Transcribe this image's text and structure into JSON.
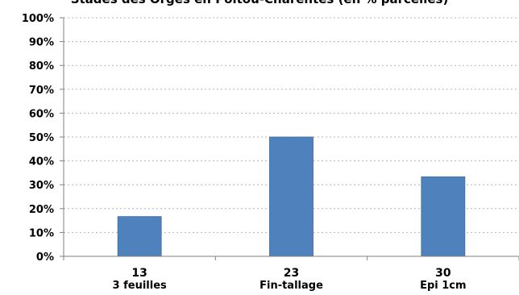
{
  "chart_data": {
    "type": "bar",
    "title": "Stades des Orges en Poitou-Charentes (en % parcelles)",
    "categories": [
      {
        "code": "13",
        "name": "3 feuilles"
      },
      {
        "code": "23",
        "name": "Fin-tallage"
      },
      {
        "code": "30",
        "name": "Epi 1cm"
      }
    ],
    "values": [
      16.67,
      50,
      33.33
    ],
    "ylim": [
      0,
      100
    ],
    "yticks": [
      "0%",
      "10%",
      "20%",
      "30%",
      "40%",
      "50%",
      "60%",
      "70%",
      "80%",
      "90%",
      "100%"
    ],
    "grid": true,
    "grid_style": "dotted",
    "xlabel": "",
    "ylabel": "",
    "colors": {
      "bar": "#4f81bd",
      "bar_stroke": "#3a6aa3",
      "grid": "#b3b3b3",
      "axis": "#808080"
    }
  }
}
